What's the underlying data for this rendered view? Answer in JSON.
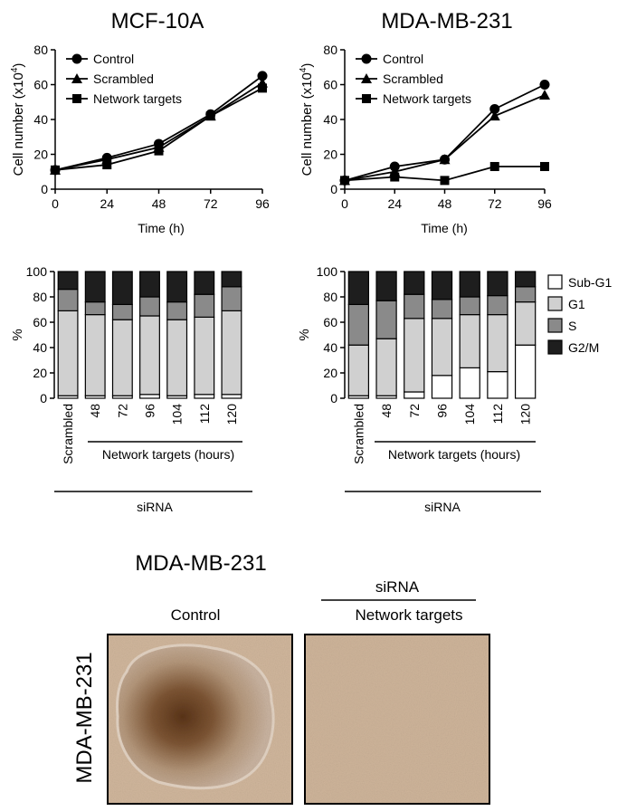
{
  "chart_data": [
    {
      "type": "line",
      "title": "MCF-10A",
      "xlabel": "Time (h)",
      "ylabel": "Cell number (x10",
      "ylabel_sup": "4",
      "ylabel_close": ")",
      "xlim": [
        0,
        96
      ],
      "ylim": [
        0,
        80
      ],
      "xticks": [
        0,
        24,
        48,
        72,
        96
      ],
      "yticks": [
        0,
        20,
        40,
        60,
        80
      ],
      "x": [
        0,
        24,
        48,
        72,
        96
      ],
      "series": [
        {
          "name": "Control",
          "marker": "circle",
          "values": [
            11,
            18,
            26,
            43,
            65
          ]
        },
        {
          "name": "Scrambled",
          "marker": "triangle",
          "values": [
            11,
            17,
            24,
            42,
            61
          ]
        },
        {
          "name": "Network targets",
          "marker": "square",
          "values": [
            11,
            14,
            22,
            42,
            58
          ]
        }
      ],
      "legend": "top-left"
    },
    {
      "type": "line",
      "title": "MDA-MB-231",
      "xlabel": "Time (h)",
      "ylabel": "Cell number (x10",
      "ylabel_sup": "4",
      "ylabel_close": ")",
      "xlim": [
        0,
        96
      ],
      "ylim": [
        0,
        80
      ],
      "xticks": [
        0,
        24,
        48,
        72,
        96
      ],
      "yticks": [
        0,
        20,
        40,
        60,
        80
      ],
      "x": [
        0,
        24,
        48,
        72,
        96
      ],
      "series": [
        {
          "name": "Control",
          "marker": "circle",
          "values": [
            5,
            13,
            17,
            46,
            60
          ]
        },
        {
          "name": "Scrambled",
          "marker": "triangle",
          "values": [
            5,
            10,
            17,
            42,
            54
          ]
        },
        {
          "name": "Network targets",
          "marker": "square",
          "values": [
            5,
            7,
            5,
            13,
            13
          ]
        }
      ],
      "legend": "top-left"
    },
    {
      "type": "bar",
      "stacked": true,
      "ylabel": "%",
      "ylim": [
        0,
        100
      ],
      "yticks": [
        0,
        20,
        40,
        60,
        80,
        100
      ],
      "categories": [
        "Scrambled",
        "48",
        "72",
        "96",
        "104",
        "112",
        "120"
      ],
      "group_label": "Network targets (hours)",
      "bracket_label": "siRNA",
      "series": [
        {
          "name": "Sub-G1",
          "color": "#ffffff",
          "values": [
            2,
            2,
            2,
            3,
            2,
            3,
            3
          ]
        },
        {
          "name": "G1",
          "color": "#d0d0d0",
          "values": [
            67,
            64,
            60,
            62,
            60,
            61,
            66
          ]
        },
        {
          "name": "S",
          "color": "#8a8a8a",
          "values": [
            17,
            10,
            12,
            15,
            14,
            18,
            19
          ]
        },
        {
          "name": "G2/M",
          "color": "#1e1e1e",
          "values": [
            14,
            24,
            26,
            20,
            24,
            18,
            12
          ]
        }
      ]
    },
    {
      "type": "bar",
      "stacked": true,
      "ylabel": "%",
      "ylim": [
        0,
        100
      ],
      "yticks": [
        0,
        20,
        40,
        60,
        80,
        100
      ],
      "categories": [
        "Scrambled",
        "48",
        "72",
        "96",
        "104",
        "112",
        "120"
      ],
      "group_label": "Network targets (hours)",
      "bracket_label": "siRNA",
      "series": [
        {
          "name": "Sub-G1",
          "color": "#ffffff",
          "values": [
            2,
            2,
            5,
            18,
            24,
            21,
            42
          ]
        },
        {
          "name": "G1",
          "color": "#d0d0d0",
          "values": [
            40,
            45,
            58,
            45,
            42,
            45,
            34
          ]
        },
        {
          "name": "S",
          "color": "#8a8a8a",
          "values": [
            32,
            30,
            19,
            15,
            14,
            15,
            12
          ]
        },
        {
          "name": "G2/M",
          "color": "#1e1e1e",
          "values": [
            26,
            23,
            18,
            22,
            20,
            19,
            12
          ]
        }
      ],
      "legend": "right"
    }
  ],
  "images": {
    "title": "MDA-MB-231",
    "side_label": "MDA-MB-231",
    "control_label": "Control",
    "sirna_label": "siRNA",
    "targets_label": "Network targets",
    "colors": {
      "spheroid_core": "#5a3418",
      "spheroid_edge": "#c2a78d",
      "background": "#d0b69c",
      "empty_well": "#ceb49a"
    }
  }
}
